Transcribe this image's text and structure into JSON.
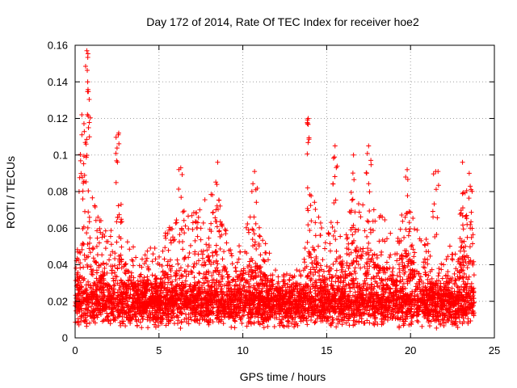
{
  "chart_data": {
    "type": "scatter",
    "title": "Day 172 of 2014, Rate Of TEC Index for receiver hoe2",
    "xlabel": "GPS time / hours",
    "ylabel": "ROTI / TECUs",
    "xlim": [
      0,
      25
    ],
    "ylim": [
      0,
      0.16
    ],
    "xticks": [
      0,
      5,
      10,
      15,
      20,
      25
    ],
    "xtick_labels": [
      "0",
      "5",
      "10",
      "15",
      "20",
      "25"
    ],
    "yticks": [
      0,
      0.02,
      0.04,
      0.06,
      0.08,
      0.1,
      0.12,
      0.14,
      0.16
    ],
    "ytick_labels": [
      "0",
      "0.02",
      "0.04",
      "0.06",
      "0.08",
      "0.1",
      "0.12",
      "0.14",
      "0.16"
    ],
    "grid": true,
    "marker": "+",
    "series": [
      {
        "name": "ROTI",
        "color": "#ff0000",
        "peaks": [
          {
            "x": 0.4,
            "y": 0.122
          },
          {
            "x": 0.7,
            "y": 0.157
          },
          {
            "x": 0.75,
            "y": 0.14
          },
          {
            "x": 2.6,
            "y": 0.112
          },
          {
            "x": 6.3,
            "y": 0.093
          },
          {
            "x": 8.5,
            "y": 0.096
          },
          {
            "x": 10.7,
            "y": 0.091
          },
          {
            "x": 13.9,
            "y": 0.12
          },
          {
            "x": 15.5,
            "y": 0.105
          },
          {
            "x": 16.6,
            "y": 0.1
          },
          {
            "x": 17.5,
            "y": 0.105
          },
          {
            "x": 19.8,
            "y": 0.092
          },
          {
            "x": 21.5,
            "y": 0.091
          },
          {
            "x": 23.1,
            "y": 0.096
          },
          {
            "x": 23.5,
            "y": 0.09
          }
        ],
        "envelope": [
          [
            0.0,
            0.06
          ],
          [
            0.5,
            0.1
          ],
          [
            1.0,
            0.08
          ],
          [
            1.5,
            0.065
          ],
          [
            2.0,
            0.055
          ],
          [
            2.5,
            0.075
          ],
          [
            3.0,
            0.06
          ],
          [
            3.5,
            0.05
          ],
          [
            4.0,
            0.045
          ],
          [
            4.5,
            0.05
          ],
          [
            5.0,
            0.05
          ],
          [
            5.5,
            0.06
          ],
          [
            6.0,
            0.065
          ],
          [
            6.5,
            0.07
          ],
          [
            7.0,
            0.07
          ],
          [
            7.5,
            0.075
          ],
          [
            8.0,
            0.08
          ],
          [
            8.5,
            0.08
          ],
          [
            9.0,
            0.06
          ],
          [
            9.5,
            0.05
          ],
          [
            10.0,
            0.055
          ],
          [
            10.5,
            0.07
          ],
          [
            11.0,
            0.06
          ],
          [
            11.5,
            0.05
          ],
          [
            12.0,
            0.04
          ],
          [
            12.5,
            0.035
          ],
          [
            13.0,
            0.035
          ],
          [
            13.5,
            0.04
          ],
          [
            14.0,
            0.08
          ],
          [
            14.5,
            0.07
          ],
          [
            15.0,
            0.06
          ],
          [
            15.5,
            0.07
          ],
          [
            16.0,
            0.06
          ],
          [
            16.5,
            0.08
          ],
          [
            17.0,
            0.08
          ],
          [
            17.5,
            0.085
          ],
          [
            18.0,
            0.07
          ],
          [
            18.5,
            0.065
          ],
          [
            19.0,
            0.06
          ],
          [
            19.5,
            0.075
          ],
          [
            20.0,
            0.07
          ],
          [
            20.5,
            0.065
          ],
          [
            21.0,
            0.055
          ],
          [
            21.5,
            0.04
          ],
          [
            22.0,
            0.045
          ],
          [
            22.5,
            0.055
          ],
          [
            23.0,
            0.07
          ],
          [
            23.5,
            0.07
          ],
          [
            23.8,
            0.06
          ]
        ],
        "x_range": [
          0,
          23.8
        ],
        "baseline_range": [
          0.005,
          0.02
        ]
      }
    ]
  }
}
